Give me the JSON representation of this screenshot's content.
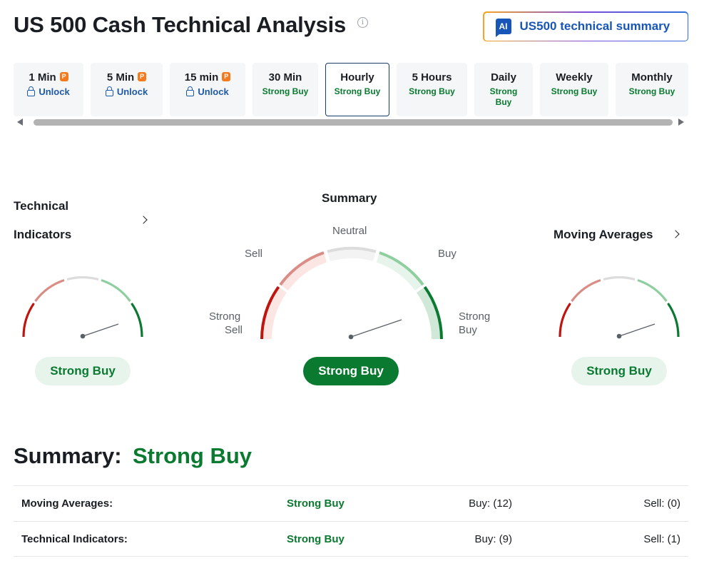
{
  "header": {
    "title": "US 500 Cash Technical Analysis",
    "ai_button": {
      "icon_text": "AI",
      "label": "US500 technical summary"
    }
  },
  "timeframes": [
    {
      "name": "1 Min",
      "value": "Unlock",
      "locked": true,
      "pro": true
    },
    {
      "name": "5 Min",
      "value": "Unlock",
      "locked": true,
      "pro": true
    },
    {
      "name": "15 min",
      "value": "Unlock",
      "locked": true,
      "pro": true
    },
    {
      "name": "30 Min",
      "value": "Strong Buy",
      "locked": false
    },
    {
      "name": "Hourly",
      "value": "Strong Buy",
      "locked": false,
      "active": true
    },
    {
      "name": "5 Hours",
      "value": "Strong Buy",
      "locked": false
    },
    {
      "name": "Daily",
      "value": "Strong Buy",
      "locked": false
    },
    {
      "name": "Weekly",
      "value": "Strong Buy",
      "locked": false
    },
    {
      "name": "Monthly",
      "value": "Strong Buy",
      "locked": false
    }
  ],
  "gauges": {
    "technical_indicators": {
      "title_line1": "Technical",
      "title_line2": "Indicators",
      "result": "Strong Buy"
    },
    "summary": {
      "title": "Summary",
      "result": "Strong Buy",
      "labels": {
        "neutral": "Neutral",
        "sell": "Sell",
        "buy": "Buy",
        "strong_sell_1": "Strong",
        "strong_sell_2": "Sell",
        "strong_buy_1": "Strong",
        "strong_buy_2": "Buy"
      }
    },
    "moving_averages": {
      "title": "Moving Averages",
      "result": "Strong Buy"
    }
  },
  "summary": {
    "label": "Summary:",
    "value": "Strong Buy",
    "rows": [
      {
        "label": "Moving Averages:",
        "value": "Strong Buy",
        "buy": "Buy: (12)",
        "sell": "Sell: (0)"
      },
      {
        "label": "Technical Indicators:",
        "value": "Strong Buy",
        "buy": "Buy: (9)",
        "sell": "Sell: (1)"
      }
    ]
  },
  "colors": {
    "strong_sell": "#c0150f",
    "sell": "#d98d86",
    "neutral": "#dcdcdc",
    "buy": "#8fcf9f",
    "strong_buy": "#0a7a30",
    "link_blue": "#1756b8"
  }
}
